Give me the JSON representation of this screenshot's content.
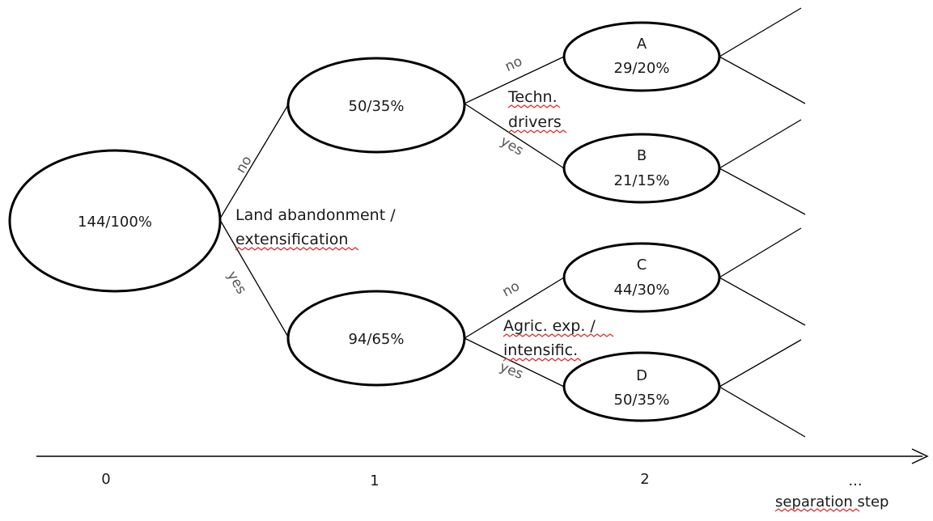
{
  "nodes": {
    "root": {
      "text": "144/100%"
    },
    "n_no": {
      "text": "50/35%"
    },
    "n_yes": {
      "text": "94/65%"
    },
    "A": {
      "letter": "A",
      "text": "29/20%"
    },
    "B": {
      "letter": "B",
      "text": "21/15%"
    },
    "C": {
      "letter": "C",
      "text": "44/30%"
    },
    "D": {
      "letter": "D",
      "text": "50/35%"
    }
  },
  "questions": {
    "q1": {
      "line1": "Land abandonment /",
      "line2": "extensification"
    },
    "q2a": {
      "line1": "Techn.",
      "line2": "drivers"
    },
    "q2b": {
      "line1": "Agric. exp. /",
      "line2": "intensific."
    }
  },
  "edge_labels": {
    "no": "no",
    "yes": "yes"
  },
  "axis": {
    "ticks": [
      "0",
      "1",
      "2",
      "..."
    ],
    "label": "separation step"
  },
  "colors": {
    "stroke": "#000000",
    "text": "#1a1a1a",
    "edge_label": "#555555",
    "spellcheck": "#e0262a"
  }
}
